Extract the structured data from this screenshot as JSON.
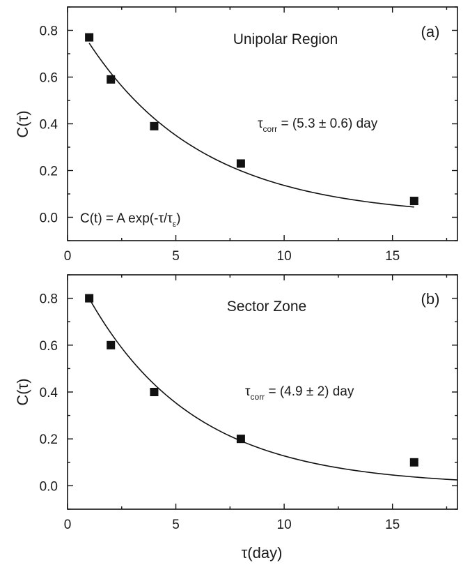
{
  "colors": {
    "marker": "#111111",
    "curve": "#111111",
    "axis": "#111111"
  },
  "chart_data": [
    {
      "type": "scatter",
      "panel_letter": "(a)",
      "title": "Unipolar Region",
      "ylabel": "C(τ)",
      "xlabel": "",
      "xlim": [
        0,
        18
      ],
      "ylim": [
        -0.1,
        0.9
      ],
      "xticks": [
        0,
        5,
        10,
        15
      ],
      "xtick_labels": [
        "0",
        "5",
        "10",
        "15"
      ],
      "yticks": [
        0.0,
        0.2,
        0.4,
        0.6,
        0.8
      ],
      "ytick_labels": [
        "0.0",
        "0.2",
        "0.4",
        "0.6",
        "0.8"
      ],
      "grid": false,
      "series": [
        {
          "x": [
            1,
            2,
            4,
            8,
            16
          ],
          "y": [
            0.77,
            0.59,
            0.39,
            0.23,
            0.07
          ]
        }
      ],
      "fit": {
        "amplitude": 0.9,
        "tau": 5.3,
        "x_range": [
          1,
          16
        ]
      },
      "annotation_fit": {
        "tau_symbol": "τ",
        "sub": "corr",
        "text": " = (5.3 ± 0.6) day"
      },
      "formula": {
        "main": "C(t) = A exp(-τ/τ",
        "sub": "ε",
        "close": ")"
      }
    },
    {
      "type": "scatter",
      "panel_letter": "(b)",
      "title": "Sector Zone",
      "ylabel": "C(τ)",
      "xlabel": "τ(day)",
      "xlim": [
        0,
        18
      ],
      "ylim": [
        -0.1,
        0.9
      ],
      "xticks": [
        0,
        5,
        10,
        15
      ],
      "xtick_labels": [
        "0",
        "5",
        "10",
        "15"
      ],
      "yticks": [
        0.0,
        0.2,
        0.4,
        0.6,
        0.8
      ],
      "ytick_labels": [
        "0.0",
        "0.2",
        "0.4",
        "0.6",
        "0.8"
      ],
      "grid": false,
      "series": [
        {
          "x": [
            1,
            2,
            4,
            8,
            16
          ],
          "y": [
            0.8,
            0.6,
            0.4,
            0.2,
            0.1
          ]
        }
      ],
      "fit": {
        "amplitude": 0.98,
        "tau": 4.9,
        "x_range": [
          1,
          18
        ]
      },
      "annotation_fit": {
        "tau_symbol": "τ",
        "sub": "corr",
        "text": " = (4.9 ± 2) day"
      }
    }
  ]
}
